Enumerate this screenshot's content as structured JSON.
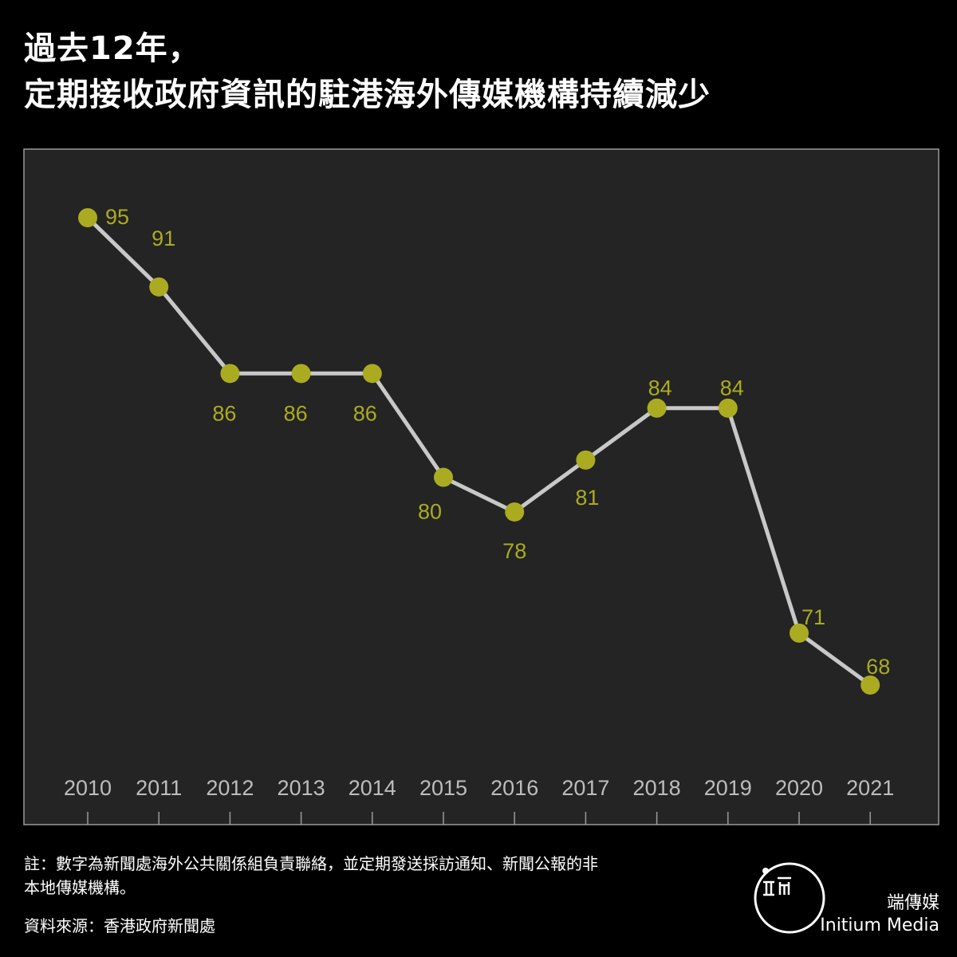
{
  "title": {
    "line1": "過去12年，",
    "line2": "定期接收政府資訊的駐港海外傳媒機構持續減少"
  },
  "chart_data": {
    "type": "line",
    "x": [
      "2010",
      "2011",
      "2012",
      "2013",
      "2014",
      "2015",
      "2016",
      "2017",
      "2018",
      "2019",
      "2020",
      "2021"
    ],
    "values": [
      95,
      91,
      86,
      86,
      86,
      80,
      78,
      81,
      84,
      84,
      71,
      68
    ],
    "data_labels": [
      "95",
      "91",
      "86",
      "86",
      "86",
      "80",
      "78",
      "81",
      "84",
      "84",
      "71",
      "68"
    ],
    "xlabel": "",
    "ylabel": "",
    "ylim": [
      66,
      97
    ],
    "grid": false,
    "legend": "none"
  },
  "colors": {
    "background": "#000000",
    "plot_background": "#242424",
    "line": "#c8c8c8",
    "marker": "#abab22",
    "label": "#abab22",
    "tick_label": "#bdbdbd"
  },
  "footer": {
    "note_line1": "註：數字為新聞處海外公共關係組負責聯絡，並定期發送採訪通知、新聞公報的非",
    "note_line2": "本地傳媒機構。",
    "source": "資料來源：香港政府新聞處",
    "brand_zh": "端傳媒",
    "brand_en": "Initium Media",
    "logo_icon": "initium-logo-icon"
  }
}
